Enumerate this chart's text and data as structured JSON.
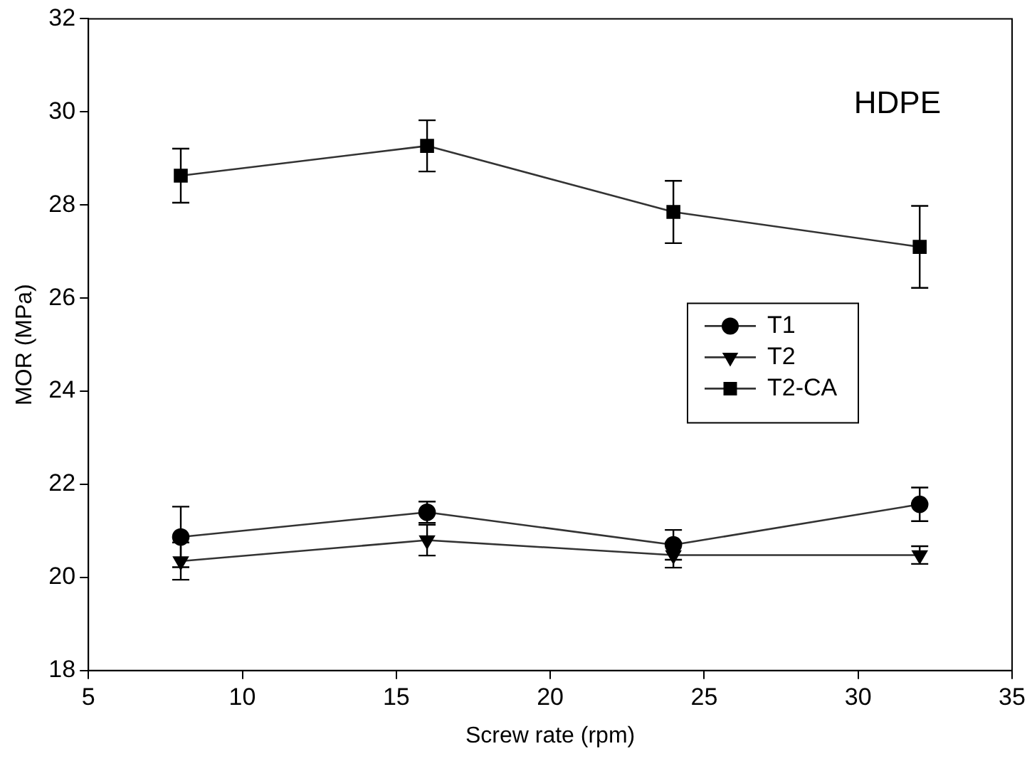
{
  "chart_data": {
    "type": "line",
    "xlabel": "Screw rate (rpm)",
    "ylabel": "MOR (MPa)",
    "annotations": [
      "HDPE"
    ],
    "x": [
      8,
      16,
      24,
      32
    ],
    "series": [
      {
        "name": "T1",
        "color": "#000000",
        "marker": "circle",
        "values": [
          20.87,
          21.4,
          20.7,
          21.57
        ],
        "errors": [
          0.65,
          0.23,
          0.32,
          0.36
        ]
      },
      {
        "name": "T2",
        "color": "#000000",
        "marker": "triangle",
        "values": [
          20.35,
          20.8,
          20.48,
          20.48
        ],
        "errors": [
          0.4,
          0.33,
          0.27,
          0.19
        ]
      },
      {
        "name": "T2-CA",
        "color": "#000000",
        "marker": "square",
        "values": [
          28.63,
          29.27,
          27.85,
          27.1
        ],
        "errors": [
          0.58,
          0.55,
          0.67,
          0.88
        ]
      }
    ],
    "xlim": [
      5,
      35
    ],
    "xticks": [
      5,
      10,
      15,
      20,
      25,
      30,
      35
    ],
    "ylim": [
      18,
      32
    ],
    "yticks": [
      18,
      20,
      22,
      24,
      26,
      28,
      30,
      32
    ],
    "grid": false,
    "legend": "right",
    "line_style": "solid"
  }
}
